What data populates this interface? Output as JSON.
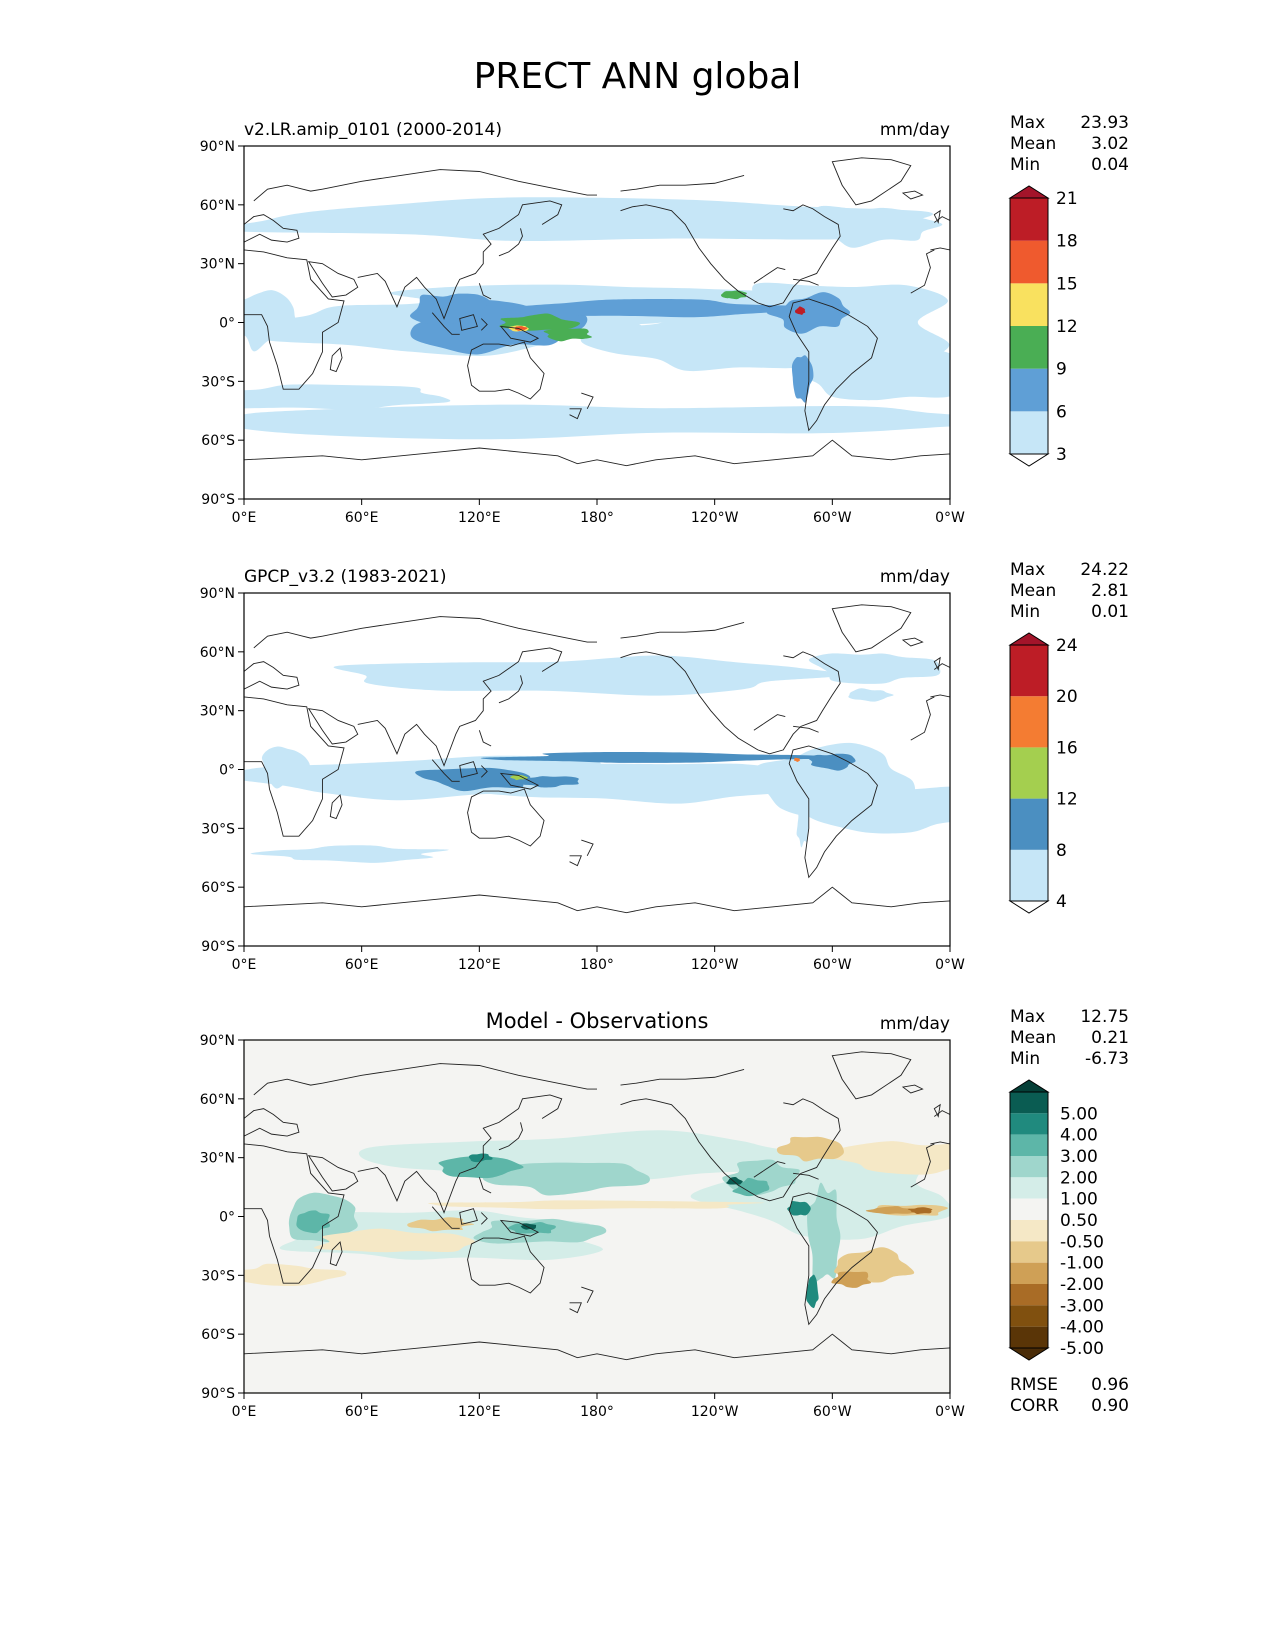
{
  "figure": {
    "title": "PRECT ANN global"
  },
  "x_ticks": [
    "0°E",
    "60°E",
    "120°E",
    "180°",
    "120°W",
    "60°W",
    "0°W"
  ],
  "y_ticks": [
    "90°N",
    "60°N",
    "30°N",
    "0°",
    "30°S",
    "60°S",
    "90°S"
  ],
  "panels": [
    {
      "title_left": "v2.LR.amip_0101 (2000-2014)",
      "title_center": "",
      "units": "mm/day",
      "stats": {
        "max_label": "Max",
        "max": "23.93",
        "mean_label": "Mean",
        "mean": "3.02",
        "min_label": "Min",
        "min": "0.04"
      },
      "background": "#ffffff",
      "colorbar": {
        "levels": [
          "3",
          "6",
          "9",
          "12",
          "15",
          "18",
          "21"
        ],
        "colors": [
          "#c6e6f7",
          "#5f9fd6",
          "#4aae54",
          "#f9e15f",
          "#ef5a2e",
          "#bd1d26"
        ],
        "over": "#a3142a",
        "under": "#ffffff"
      }
    },
    {
      "title_left": "GPCP_v3.2 (1983-2021)",
      "title_center": "",
      "units": "mm/day",
      "stats": {
        "max_label": "Max",
        "max": "24.22",
        "mean_label": "Mean",
        "mean": "2.81",
        "min_label": "Min",
        "min": "0.01"
      },
      "background": "#ffffff",
      "colorbar": {
        "levels": [
          "4",
          "8",
          "12",
          "16",
          "20",
          "24"
        ],
        "colors": [
          "#c6e6f7",
          "#4b8fc1",
          "#a4cf4f",
          "#f47c32",
          "#bd1d26"
        ],
        "over": "#a3142a",
        "under": "#ffffff"
      }
    },
    {
      "title_left": "",
      "title_center": "Model - Observations",
      "units": "mm/day",
      "stats": {
        "max_label": "Max",
        "max": "12.75",
        "mean_label": "Mean",
        "mean": "0.21",
        "min_label": "Min",
        "min": "-6.73"
      },
      "background": "#f4f4f2",
      "colorbar": {
        "labels": [
          "5.00",
          "4.00",
          "3.00",
          "2.00",
          "1.00",
          "0.50",
          "-0.50",
          "-1.00",
          "-2.00",
          "-3.00",
          "-4.00",
          "-5.00"
        ],
        "colors": [
          "#0a5c52",
          "#208a7e",
          "#5db6a8",
          "#9fd6cc",
          "#d4ede8",
          "#f4f4f2",
          "#f5e8c6",
          "#e6c98b",
          "#cfa056",
          "#a96c26",
          "#80500f",
          "#5a3507"
        ],
        "over": "#053f37",
        "under": "#4a2c08"
      },
      "metrics": {
        "rmse_label": "RMSE",
        "rmse": "0.96",
        "corr_label": "CORR",
        "corr": "0.90"
      }
    }
  ]
}
